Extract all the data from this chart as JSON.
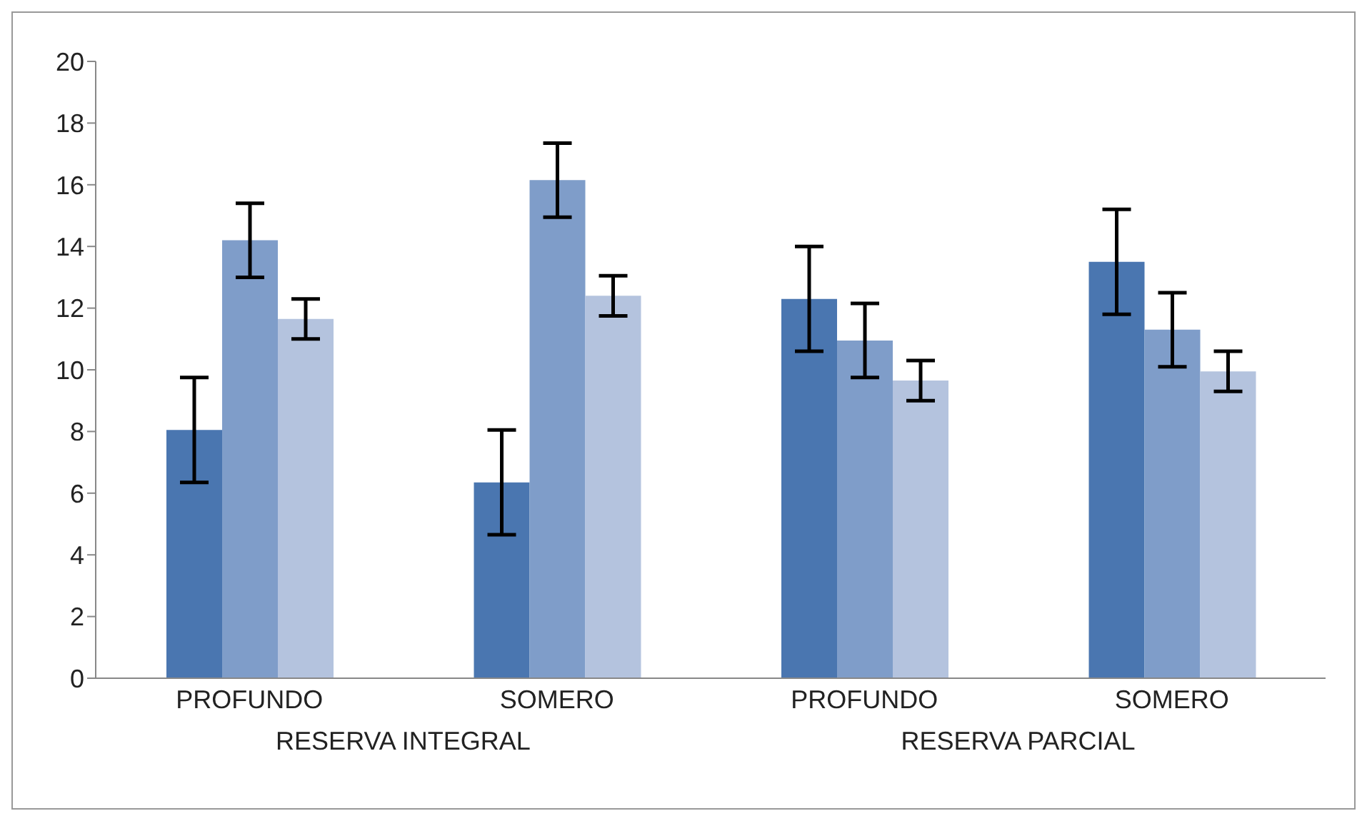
{
  "chart_data": {
    "type": "bar",
    "categories": [
      "PROFUNDO",
      "SOMERO",
      "PROFUNDO",
      "SOMERO"
    ],
    "series": [
      {
        "color": "#4a76b0",
        "values": [
          8.05,
          6.35,
          12.3,
          13.5
        ],
        "errors": [
          1.7,
          1.7,
          1.7,
          1.7
        ]
      },
      {
        "color": "#7f9dc9",
        "values": [
          14.2,
          16.15,
          10.95,
          11.3
        ],
        "errors": [
          1.2,
          1.2,
          1.2,
          1.2
        ]
      },
      {
        "color": "#b4c3de",
        "values": [
          11.65,
          12.4,
          9.65,
          9.95
        ],
        "errors": [
          0.65,
          0.65,
          0.65,
          0.65
        ]
      }
    ],
    "annotations": [
      "RESERVA INTEGRAL",
      "RESERVA PARCIAL"
    ],
    "ylim": [
      0,
      20
    ],
    "yticks": [
      0,
      2,
      4,
      6,
      8,
      10,
      12,
      14,
      16,
      18,
      20
    ],
    "grid": false,
    "legend": false
  }
}
